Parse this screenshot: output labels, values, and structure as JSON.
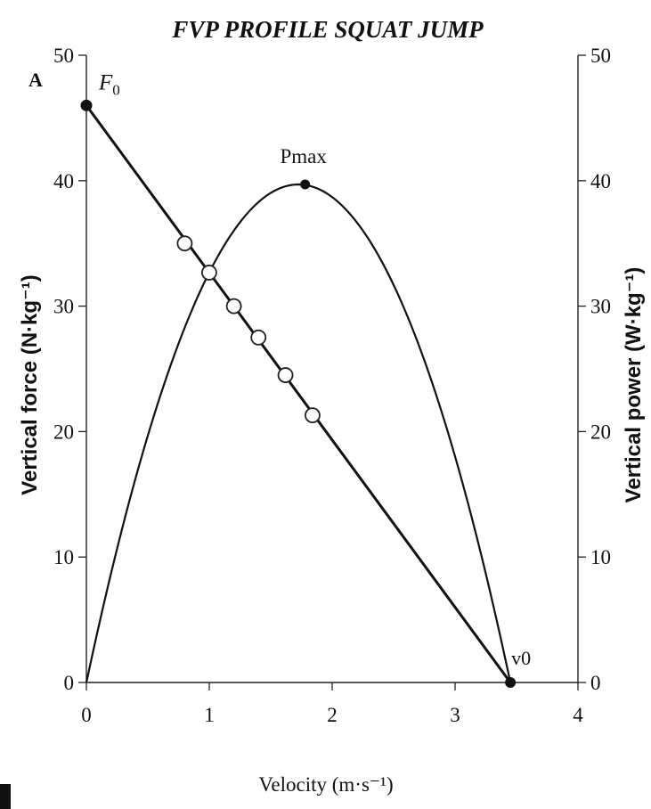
{
  "chart_data": {
    "type": "scatter",
    "title": "FVP PROFILE SQUAT JUMP",
    "panel_label": "A",
    "xlabel": "Velocity (m·s⁻¹)",
    "ylabel_left": "Vertical force (N·kg⁻¹)",
    "ylabel_right": "Vertical power (W·kg⁻¹)",
    "xlim": [
      0,
      4
    ],
    "ylim_left": [
      0,
      50
    ],
    "ylim_right": [
      0,
      50
    ],
    "x_ticks": [
      "0",
      "1",
      "2",
      "3",
      "4"
    ],
    "y_ticks_left": [
      "0",
      "10",
      "20",
      "30",
      "40",
      "50"
    ],
    "y_ticks_right": [
      "0",
      "10",
      "20",
      "30",
      "40",
      "50"
    ],
    "grid": false,
    "series": [
      {
        "kind": "force-velocity-line",
        "x": [
          0,
          3.45
        ],
        "y": [
          46,
          0
        ]
      },
      {
        "kind": "power-velocity-curve",
        "v0": 3.45,
        "pmax": 39.7
      },
      {
        "kind": "measured-points",
        "x": [
          0.8,
          1.2,
          1.4,
          1.62,
          1.84
        ],
        "y": [
          35,
          30,
          27.5,
          24.5,
          21.3
        ]
      }
    ],
    "annotations": [
      {
        "label": "F",
        "subscript": "0",
        "x": 0,
        "y": 46
      },
      {
        "label": "Pmax",
        "x": 1.78,
        "y": 39.7
      },
      {
        "label": "v0",
        "x": 3.45,
        "y": 0
      }
    ]
  }
}
